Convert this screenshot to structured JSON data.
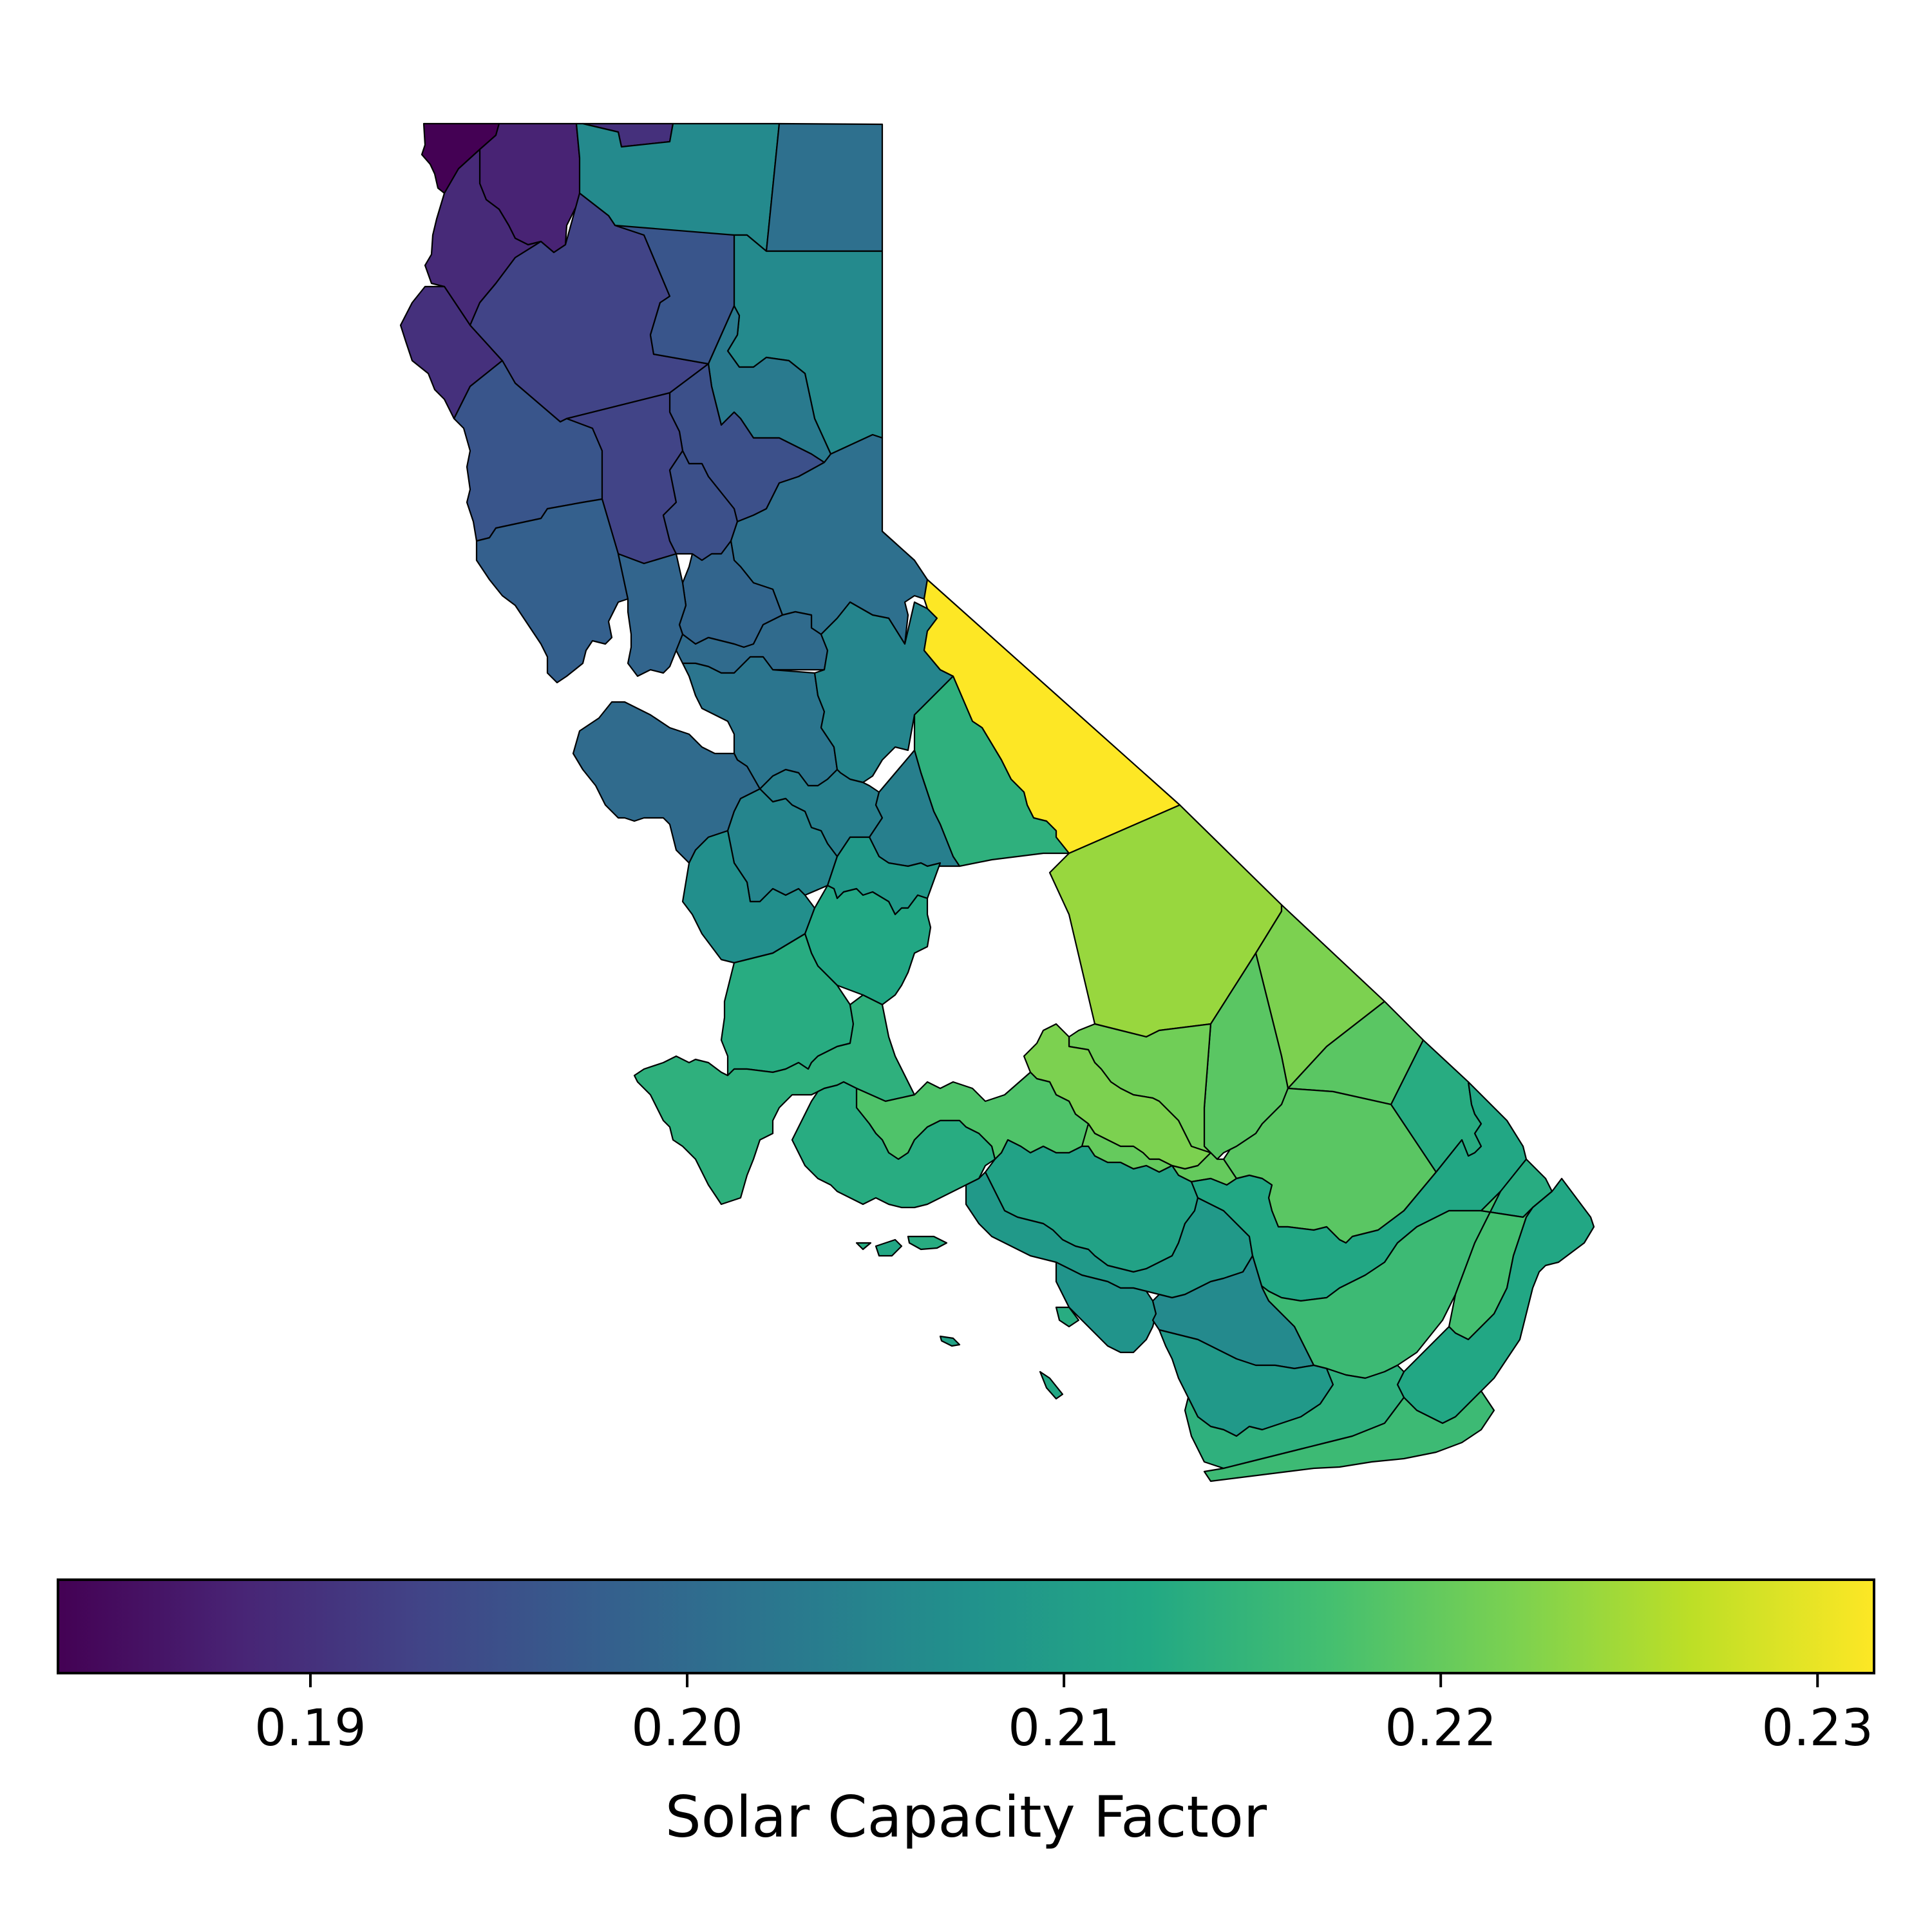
{
  "map": {
    "variable": "Solar Capacity Factor",
    "colormap": "viridis",
    "value_range": [
      0.1833,
      0.2315
    ],
    "regions": [
      {
        "id": "nw-corner",
        "value": 0.1833
      },
      {
        "id": "n-coast-1",
        "value": 0.188
      },
      {
        "id": "n-coast-2",
        "value": 0.189
      },
      {
        "id": "n-coast-3",
        "value": 0.19
      },
      {
        "id": "n-top-sliver",
        "value": 0.19
      },
      {
        "id": "n-top-mid",
        "value": 0.206
      },
      {
        "id": "ne-corner",
        "value": 0.201
      },
      {
        "id": "ne-upper",
        "value": 0.206
      },
      {
        "id": "n-interior-1",
        "value": 0.193
      },
      {
        "id": "n-interior-2",
        "value": 0.196
      },
      {
        "id": "n-interior-3",
        "value": 0.203
      },
      {
        "id": "n-interior-4",
        "value": 0.195
      },
      {
        "id": "n-coast-4",
        "value": 0.196
      },
      {
        "id": "n-valley-1",
        "value": 0.193
      },
      {
        "id": "n-valley-2",
        "value": 0.195
      },
      {
        "id": "sierra-n-1",
        "value": 0.201
      },
      {
        "id": "sierra-n-2",
        "value": 0.199
      },
      {
        "id": "bay-north-1",
        "value": 0.198
      },
      {
        "id": "bay-north-2",
        "value": 0.199
      },
      {
        "id": "valley-mid-1",
        "value": 0.2
      },
      {
        "id": "valley-mid-2",
        "value": 0.202
      },
      {
        "id": "bay-south-1",
        "value": 0.2
      },
      {
        "id": "sierra-mid",
        "value": 0.205
      },
      {
        "id": "e-sierra",
        "value": 0.214
      },
      {
        "id": "east-strip",
        "value": 0.2315
      },
      {
        "id": "valley-s-1",
        "value": 0.204
      },
      {
        "id": "valley-s-2",
        "value": 0.205
      },
      {
        "id": "valley-s-3",
        "value": 0.204
      },
      {
        "id": "central-coast-1",
        "value": 0.207
      },
      {
        "id": "central-coast-2",
        "value": 0.209
      },
      {
        "id": "central-coast-3",
        "value": 0.213
      },
      {
        "id": "central-coast-4",
        "value": 0.214
      },
      {
        "id": "valley-s-4",
        "value": 0.212
      },
      {
        "id": "inyo-n",
        "value": 0.224
      },
      {
        "id": "inyo-s",
        "value": 0.222
      },
      {
        "id": "mojave-n",
        "value": 0.219
      },
      {
        "id": "mojave-e",
        "value": 0.219
      },
      {
        "id": "mojave-s",
        "value": 0.218
      },
      {
        "id": "far-east",
        "value": 0.213
      },
      {
        "id": "kern-e-1",
        "value": 0.221
      },
      {
        "id": "kern-e-2",
        "value": 0.222
      },
      {
        "id": "antelope-1",
        "value": 0.218
      },
      {
        "id": "antelope-2",
        "value": 0.22
      },
      {
        "id": "sb-coast",
        "value": 0.213
      },
      {
        "id": "la-basin-1",
        "value": 0.211
      },
      {
        "id": "la-basin-2",
        "value": 0.209
      },
      {
        "id": "la-basin-3",
        "value": 0.208
      },
      {
        "id": "inland-empire",
        "value": 0.212
      },
      {
        "id": "riverside-e",
        "value": 0.216
      },
      {
        "id": "imperial-w",
        "value": 0.217
      },
      {
        "id": "imperial-e",
        "value": 0.212
      },
      {
        "id": "colorado-river",
        "value": 0.213
      },
      {
        "id": "orange-coast",
        "value": 0.206
      },
      {
        "id": "san-diego-n",
        "value": 0.209
      },
      {
        "id": "san-diego-s",
        "value": 0.214
      },
      {
        "id": "san-diego-e",
        "value": 0.216
      },
      {
        "id": "island-1",
        "value": 0.213
      },
      {
        "id": "island-2",
        "value": 0.212
      },
      {
        "id": "island-3",
        "value": 0.213
      },
      {
        "id": "island-4",
        "value": 0.213
      },
      {
        "id": "island-5",
        "value": 0.211
      },
      {
        "id": "island-6",
        "value": 0.212
      }
    ]
  },
  "colorbar": {
    "label": "Solar Capacity Factor",
    "min": 0.1833,
    "max": 0.2315,
    "ticks": [
      0.19,
      0.2,
      0.21,
      0.22,
      0.23
    ],
    "tick_labels": [
      "0.19",
      "0.20",
      "0.21",
      "0.22",
      "0.23"
    ]
  }
}
